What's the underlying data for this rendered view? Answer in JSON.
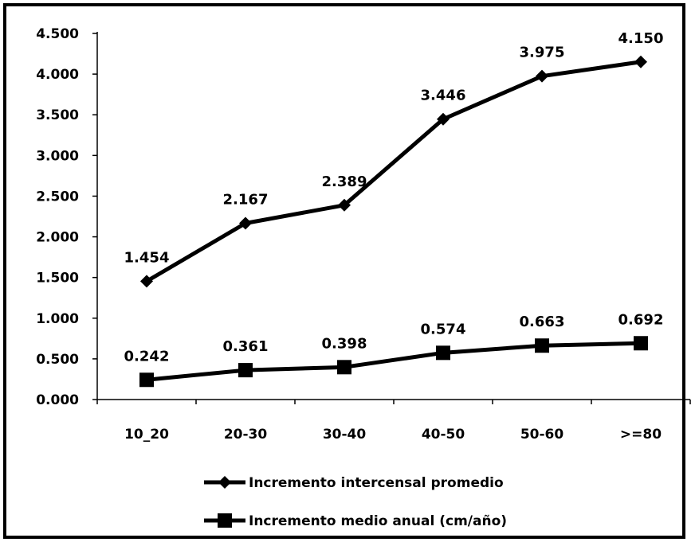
{
  "chart_data": {
    "type": "line",
    "title": "",
    "xlabel": "",
    "ylabel": "",
    "categories": [
      "10_20",
      "20-30",
      "30-40",
      "40-50",
      "50-60",
      ">=80"
    ],
    "ylim": [
      0,
      4.5
    ],
    "y_ticks": [
      "0.000",
      "0.500",
      "1.000",
      "1.500",
      "2.000",
      "2.500",
      "3.000",
      "3.500",
      "4.000",
      "4.500"
    ],
    "grid": false,
    "legend_position": "bottom",
    "series": [
      {
        "name": "Incremento intercensal promedio",
        "marker": "diamond",
        "color": "#000000",
        "values": [
          1.454,
          2.167,
          2.389,
          3.446,
          3.975,
          4.15
        ],
        "labels": [
          "1.454",
          "2.167",
          "2.389",
          "3.446",
          "3.975",
          "4.150"
        ]
      },
      {
        "name": "Incremento medio anual (cm/año)",
        "marker": "square",
        "color": "#000000",
        "values": [
          0.242,
          0.361,
          0.398,
          0.574,
          0.663,
          0.692
        ],
        "labels": [
          "0.242",
          "0.361",
          "0.398",
          "0.574",
          "0.663",
          "0.692"
        ]
      }
    ]
  }
}
